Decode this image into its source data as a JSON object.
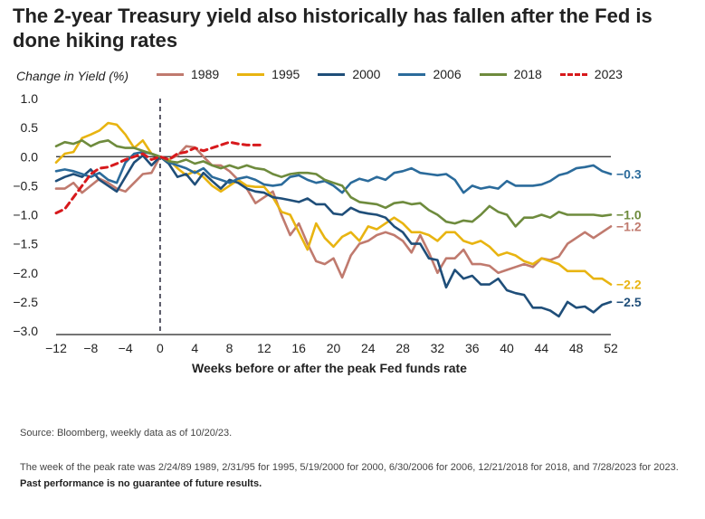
{
  "title": "The 2-year Treasury yield also historically has fallen after the Fed is done hiking rates",
  "source": "Source: Bloomberg, weekly data as of 10/20/23.",
  "note_text": "The week of the peak rate was 2/24/89 1989, 2/31/95 for 1995, 5/19/2000 for 2000, 6/30/2006 for 2006, 12/21/2018 for 2018, and 7/28/2023 for 2023.",
  "note_bold": "Past performance is no guarantee of future results.",
  "chart_data": {
    "type": "line",
    "title": "The 2-year Treasury yield also historically has fallen after the Fed is done hiking rates",
    "ylabel": "Change in Yield (%)",
    "xlabel": "Weeks before or after the peak Fed funds rate",
    "xlim": [
      -12,
      52
    ],
    "ylim": [
      -3.0,
      1.0
    ],
    "xticks": [
      -12,
      -8,
      -4,
      0,
      4,
      8,
      12,
      16,
      20,
      24,
      28,
      32,
      36,
      40,
      44,
      48,
      52
    ],
    "yticks": [
      1.0,
      0.5,
      0.0,
      -0.5,
      -1.0,
      -1.5,
      -2.0,
      -2.5,
      -3.0
    ],
    "ytick_labels": [
      "1.0",
      "0.5",
      "0.0",
      "-0.5",
      "-1.0",
      "-1.5",
      "-2.0",
      "-2.5",
      "-3.0"
    ],
    "zero_line": true,
    "vertical_line_at": 0,
    "legend_placement": "top",
    "series": [
      {
        "name": "1989",
        "color": "#c07a6e",
        "style": "solid",
        "end_label": "-1.2",
        "x": [
          -12,
          -11,
          -10,
          -9,
          -8,
          -7,
          -6,
          -5,
          -4,
          -3,
          -2,
          -1,
          0,
          1,
          2,
          3,
          4,
          5,
          6,
          7,
          8,
          9,
          10,
          11,
          12,
          13,
          14,
          15,
          16,
          17,
          18,
          19,
          20,
          21,
          22,
          23,
          24,
          25,
          26,
          27,
          28,
          29,
          30,
          31,
          32,
          33,
          34,
          35,
          36,
          37,
          38,
          39,
          40,
          41,
          42,
          43,
          44,
          45,
          46,
          47,
          48,
          49,
          50,
          51,
          52
        ],
        "y": [
          -0.55,
          -0.55,
          -0.45,
          -0.62,
          -0.5,
          -0.38,
          -0.45,
          -0.55,
          -0.6,
          -0.45,
          -0.3,
          -0.28,
          0.0,
          -0.05,
          0.02,
          0.18,
          0.16,
          0.0,
          -0.15,
          -0.15,
          -0.25,
          -0.4,
          -0.55,
          -0.8,
          -0.7,
          -0.6,
          -1.0,
          -1.35,
          -1.15,
          -1.5,
          -1.8,
          -1.85,
          -1.75,
          -2.08,
          -1.7,
          -1.5,
          -1.45,
          -1.35,
          -1.3,
          -1.35,
          -1.45,
          -1.65,
          -1.35,
          -1.65,
          -2.0,
          -1.75,
          -1.75,
          -1.6,
          -1.85,
          -1.85,
          -1.88,
          -2.0,
          -1.95,
          -1.9,
          -1.85,
          -1.9,
          -1.75,
          -1.78,
          -1.72,
          -1.5,
          -1.4,
          -1.3,
          -1.4,
          -1.3,
          -1.2
        ]
      },
      {
        "name": "1995",
        "color": "#e8b411",
        "style": "solid",
        "end_label": "-2.2",
        "x": [
          -12,
          -11,
          -10,
          -9,
          -8,
          -7,
          -6,
          -5,
          -4,
          -3,
          -2,
          -1,
          0,
          1,
          2,
          3,
          4,
          5,
          6,
          7,
          8,
          9,
          10,
          11,
          12,
          13,
          14,
          15,
          16,
          17,
          18,
          19,
          20,
          21,
          22,
          23,
          24,
          25,
          26,
          27,
          28,
          29,
          30,
          31,
          32,
          33,
          34,
          35,
          36,
          37,
          38,
          39,
          40,
          41,
          42,
          43,
          44,
          45,
          46,
          47,
          48,
          49,
          50,
          51,
          52
        ],
        "y": [
          -0.1,
          0.05,
          0.08,
          0.32,
          0.38,
          0.45,
          0.58,
          0.55,
          0.38,
          0.15,
          0.28,
          0.05,
          0.0,
          -0.05,
          -0.2,
          -0.32,
          -0.25,
          -0.35,
          -0.5,
          -0.6,
          -0.5,
          -0.4,
          -0.5,
          -0.52,
          -0.52,
          -0.7,
          -0.95,
          -1.0,
          -1.3,
          -1.6,
          -1.15,
          -1.4,
          -1.55,
          -1.38,
          -1.3,
          -1.45,
          -1.2,
          -1.25,
          -1.15,
          -1.05,
          -1.15,
          -1.3,
          -1.3,
          -1.35,
          -1.45,
          -1.3,
          -1.3,
          -1.45,
          -1.5,
          -1.45,
          -1.55,
          -1.7,
          -1.65,
          -1.7,
          -1.8,
          -1.85,
          -1.75,
          -1.8,
          -1.85,
          -1.97,
          -1.97,
          -1.97,
          -2.1,
          -2.1,
          -2.2
        ]
      },
      {
        "name": "2000",
        "color": "#1f4e79",
        "style": "solid",
        "end_label": "-2.5",
        "x": [
          -12,
          -11,
          -10,
          -9,
          -8,
          -7,
          -6,
          -5,
          -4,
          -3,
          -2,
          -1,
          0,
          1,
          2,
          3,
          4,
          5,
          6,
          7,
          8,
          9,
          10,
          11,
          12,
          13,
          14,
          15,
          16,
          17,
          18,
          19,
          20,
          21,
          22,
          23,
          24,
          25,
          26,
          27,
          28,
          29,
          30,
          31,
          32,
          33,
          34,
          35,
          36,
          37,
          38,
          39,
          40,
          41,
          42,
          43,
          44,
          45,
          46,
          47,
          48,
          49,
          50,
          51,
          52
        ],
        "y": [
          -0.42,
          -0.35,
          -0.3,
          -0.35,
          -0.22,
          -0.4,
          -0.5,
          -0.6,
          -0.35,
          -0.1,
          0.02,
          -0.15,
          0.0,
          -0.12,
          -0.35,
          -0.3,
          -0.48,
          -0.28,
          -0.42,
          -0.55,
          -0.4,
          -0.45,
          -0.55,
          -0.6,
          -0.62,
          -0.7,
          -0.72,
          -0.75,
          -0.78,
          -0.72,
          -0.82,
          -0.82,
          -0.98,
          -1.0,
          -0.88,
          -0.95,
          -0.98,
          -1.0,
          -1.05,
          -1.2,
          -1.3,
          -1.5,
          -1.5,
          -1.75,
          -1.78,
          -2.25,
          -1.95,
          -2.1,
          -2.05,
          -2.2,
          -2.2,
          -2.1,
          -2.3,
          -2.35,
          -2.38,
          -2.6,
          -2.6,
          -2.65,
          -2.75,
          -2.5,
          -2.6,
          -2.58,
          -2.68,
          -2.55,
          -2.5
        ]
      },
      {
        "name": "2006",
        "color": "#2b6b9b",
        "style": "solid",
        "end_label": "-0.3",
        "x": [
          -12,
          -11,
          -10,
          -9,
          -8,
          -7,
          -6,
          -5,
          -4,
          -3,
          -2,
          -1,
          0,
          1,
          2,
          3,
          4,
          5,
          6,
          7,
          8,
          9,
          10,
          11,
          12,
          13,
          14,
          15,
          16,
          17,
          18,
          19,
          20,
          21,
          22,
          23,
          24,
          25,
          26,
          27,
          28,
          29,
          30,
          31,
          32,
          33,
          34,
          35,
          36,
          37,
          38,
          39,
          40,
          41,
          42,
          43,
          44,
          45,
          46,
          47,
          48,
          49,
          50,
          51,
          52
        ],
        "y": [
          -0.25,
          -0.22,
          -0.25,
          -0.3,
          -0.35,
          -0.28,
          -0.4,
          -0.45,
          -0.1,
          0.05,
          0.08,
          0.05,
          0.0,
          -0.1,
          -0.15,
          -0.2,
          -0.28,
          -0.2,
          -0.35,
          -0.4,
          -0.45,
          -0.38,
          -0.35,
          -0.4,
          -0.48,
          -0.5,
          -0.48,
          -0.35,
          -0.32,
          -0.4,
          -0.45,
          -0.42,
          -0.5,
          -0.62,
          -0.45,
          -0.38,
          -0.42,
          -0.35,
          -0.4,
          -0.28,
          -0.25,
          -0.2,
          -0.28,
          -0.3,
          -0.32,
          -0.3,
          -0.4,
          -0.62,
          -0.5,
          -0.55,
          -0.52,
          -0.55,
          -0.42,
          -0.5,
          -0.5,
          -0.5,
          -0.48,
          -0.42,
          -0.32,
          -0.28,
          -0.2,
          -0.18,
          -0.15,
          -0.25,
          -0.3
        ]
      },
      {
        "name": "2018",
        "color": "#6e8b3d",
        "style": "solid",
        "end_label": "-1.0",
        "x": [
          -12,
          -11,
          -10,
          -9,
          -8,
          -7,
          -6,
          -5,
          -4,
          -3,
          -2,
          -1,
          0,
          1,
          2,
          3,
          4,
          5,
          6,
          7,
          8,
          9,
          10,
          11,
          12,
          13,
          14,
          15,
          16,
          17,
          18,
          19,
          20,
          21,
          22,
          23,
          24,
          25,
          26,
          27,
          28,
          29,
          30,
          31,
          32,
          33,
          34,
          35,
          36,
          37,
          38,
          39,
          40,
          41,
          42,
          43,
          44,
          45,
          46,
          47,
          48,
          49,
          50,
          51,
          52
        ],
        "y": [
          0.18,
          0.25,
          0.22,
          0.28,
          0.18,
          0.25,
          0.28,
          0.18,
          0.15,
          0.15,
          0.1,
          0.05,
          0.0,
          -0.08,
          -0.1,
          -0.05,
          -0.12,
          -0.08,
          -0.15,
          -0.2,
          -0.15,
          -0.2,
          -0.15,
          -0.2,
          -0.22,
          -0.3,
          -0.35,
          -0.3,
          -0.28,
          -0.28,
          -0.3,
          -0.4,
          -0.45,
          -0.5,
          -0.7,
          -0.78,
          -0.8,
          -0.82,
          -0.88,
          -0.8,
          -0.78,
          -0.82,
          -0.8,
          -0.92,
          -1.0,
          -1.12,
          -1.15,
          -1.1,
          -1.12,
          -1.0,
          -0.85,
          -0.95,
          -1.0,
          -1.2,
          -1.05,
          -1.05,
          -1.0,
          -1.05,
          -0.95,
          -1.0,
          -1.0,
          -1.0,
          -1.0,
          -1.02,
          -1.0
        ]
      },
      {
        "name": "2023",
        "color": "#d7191c",
        "style": "dashed",
        "end_label": "",
        "x": [
          -12,
          -11,
          -10,
          -9,
          -8,
          -7,
          -6,
          -5,
          -4,
          -3,
          -2,
          -1,
          0,
          1,
          2,
          3,
          4,
          5,
          6,
          7,
          8,
          9,
          10,
          11,
          12
        ],
        "y": [
          -0.97,
          -0.9,
          -0.7,
          -0.5,
          -0.3,
          -0.2,
          -0.18,
          -0.12,
          -0.05,
          0.0,
          0.05,
          -0.05,
          0.0,
          -0.05,
          0.05,
          0.08,
          0.15,
          0.1,
          0.15,
          0.2,
          0.25,
          0.22,
          0.2,
          0.2,
          0.2
        ]
      }
    ]
  }
}
